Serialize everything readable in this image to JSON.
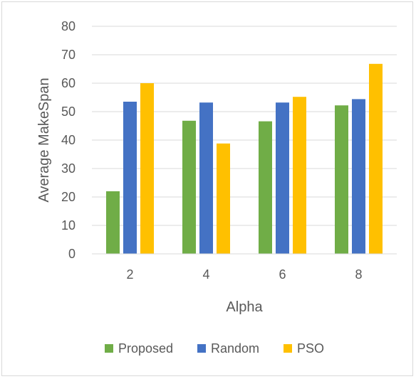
{
  "chart_data": {
    "type": "bar",
    "title": "",
    "xlabel": "Alpha",
    "ylabel": "Average MakeSpan",
    "categories": [
      "2",
      "4",
      "6",
      "8"
    ],
    "ylim": [
      0,
      80
    ],
    "yticks": [
      "0",
      "10",
      "20",
      "30",
      "40",
      "50",
      "60",
      "70",
      "80"
    ],
    "grid": true,
    "legend_position": "bottom",
    "series": [
      {
        "name": "Proposed",
        "color": "#70AD47",
        "values": [
          22,
          46.8,
          46.6,
          52.2
        ]
      },
      {
        "name": "Random",
        "color": "#4472C4",
        "values": [
          53.5,
          53.2,
          53.2,
          54.4
        ]
      },
      {
        "name": "PSO",
        "color": "#FFC000",
        "values": [
          60,
          38.8,
          55.2,
          66.8
        ]
      }
    ]
  }
}
